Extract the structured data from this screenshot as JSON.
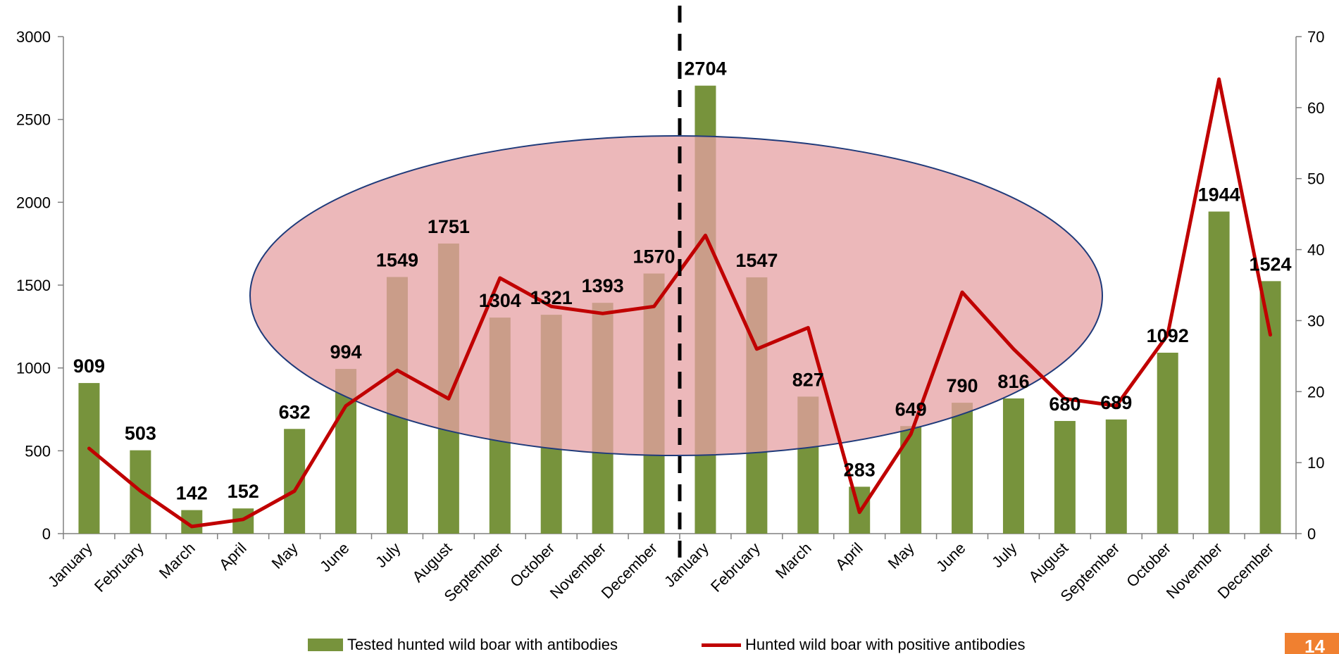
{
  "chart_data": {
    "type": "bar",
    "categories": [
      "January",
      "February",
      "March",
      "April",
      "May",
      "June",
      "July",
      "August",
      "September",
      "October",
      "November",
      "December",
      "January",
      "February",
      "March",
      "April",
      "May",
      "June",
      "July",
      "August",
      "September",
      "October",
      "November",
      "December"
    ],
    "series": [
      {
        "name": "Tested hunted wild boar with antibodies",
        "type": "bar",
        "axis": "left",
        "color": "#77933C",
        "values": [
          909,
          503,
          142,
          152,
          632,
          994,
          1549,
          1751,
          1304,
          1321,
          1393,
          1570,
          2704,
          1547,
          827,
          283,
          649,
          790,
          816,
          680,
          689,
          1092,
          1944,
          1524
        ]
      },
      {
        "name": "Hunted wild boar with positive antibodies",
        "type": "line",
        "axis": "right",
        "color": "#C00000",
        "values": [
          12,
          6,
          1,
          2,
          6,
          18,
          23,
          19,
          36,
          32,
          31,
          32,
          42,
          26,
          29,
          3,
          14,
          34,
          26,
          19,
          18,
          28,
          64,
          28
        ]
      }
    ],
    "y_left": {
      "min": 0,
      "max": 3000,
      "ticks": [
        0,
        500,
        1000,
        1500,
        2000,
        2500,
        3000
      ]
    },
    "y_right": {
      "min": 0,
      "max": 70,
      "ticks": [
        0,
        10,
        20,
        30,
        40,
        50,
        60,
        70
      ]
    },
    "data_labels": [
      "909",
      "503",
      "142",
      "152",
      "632",
      "994",
      "1549",
      "1751",
      "1304",
      "1321",
      "1393",
      "1570",
      "2704",
      "1547",
      "827",
      "283",
      "649",
      "790",
      "816",
      "680",
      "689",
      "1092",
      "1944",
      "1524"
    ],
    "divider_after_index": 11,
    "highlight": {
      "shape": "ellipse",
      "fill": "#E6A0A3",
      "stroke": "#1F3A7A"
    },
    "legend_position": "bottom",
    "grid": false
  },
  "page": {
    "number": "14",
    "badge_color": "#F08030"
  }
}
